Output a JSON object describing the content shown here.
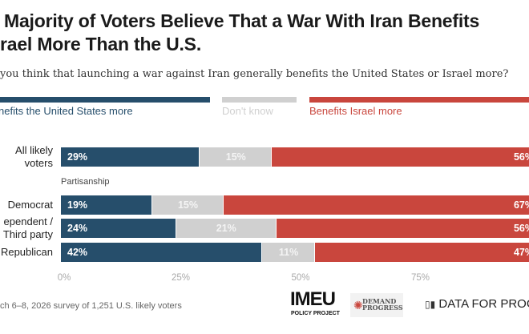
{
  "header": {
    "title_line1": "Majority of Voters Believe That a War With Iran Benefits",
    "title_line2": "rael More Than the U.S.",
    "subtitle": "you think that launching a war against Iran generally benefits the United States or Israel more?"
  },
  "chart_data": {
    "type": "bar",
    "orientation": "horizontal-stacked-100",
    "legend_position": "top",
    "series": [
      {
        "name": "nefits the United States more",
        "color": "#264e6b",
        "label_color": "#264e6b",
        "values": [
          29,
          19,
          24,
          42
        ]
      },
      {
        "name": "Don't know",
        "color": "#d0d0d0",
        "label_color": "#d0d0d0",
        "values": [
          15,
          15,
          21,
          11
        ]
      },
      {
        "name": "Benefits Israel more",
        "color": "#c9463d",
        "label_color": "#c9463d",
        "values": [
          56,
          67,
          56,
          47
        ]
      }
    ],
    "categories": [
      {
        "label_line1": "All likely",
        "label_line2": "voters"
      },
      {
        "label_line1": "Democrat",
        "label_line2": ""
      },
      {
        "label_line1": "ependent /",
        "label_line2": "Third party"
      },
      {
        "label_line1": "Republican",
        "label_line2": ""
      }
    ],
    "group_label": "Partisanship",
    "xlim": [
      0,
      100
    ],
    "xticks": [
      "0%",
      "25%",
      "50%",
      "75%"
    ],
    "grid": false
  },
  "footer": {
    "source": "ch 6–8, 2026 survey of 1,251 U.S. likely voters",
    "logos": {
      "imeu": "IMEU",
      "imeu_sub": "POLICY PROJECT",
      "demand_progress_1": "DEMAND",
      "demand_progress_2": "PROGRESS",
      "dfp": "DATA FOR PROGRES"
    }
  }
}
